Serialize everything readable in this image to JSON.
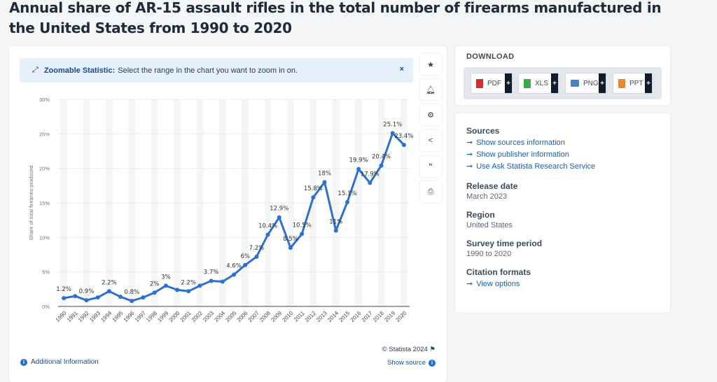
{
  "title": "Annual share of AR-15 assault rifles in the total number of firearms manufactured in the United States from 1990 to 2020",
  "banner": {
    "label": "Zoomable Statistic:",
    "text": "Select the range in the chart you want to zoom in on.",
    "close": "×"
  },
  "footer": {
    "additional": "Additional Information",
    "copyright": "© Statista 2024",
    "show_source": "Show source"
  },
  "download": {
    "title": "DOWNLOAD",
    "buttons": [
      {
        "label": "PDF",
        "color": "#d0312d"
      },
      {
        "label": "XLS",
        "color": "#3aa845"
      },
      {
        "label": "PNG",
        "color": "#4a7fc0"
      },
      {
        "label": "PPT",
        "color": "#e8862a"
      }
    ],
    "plus": "+"
  },
  "info": {
    "sources_title": "Sources",
    "links": [
      "Show sources information",
      "Show publisher information",
      "Use Ask Statista Research Service"
    ],
    "release_title": "Release date",
    "release": "March 2023",
    "region_title": "Region",
    "region": "United States",
    "period_title": "Survey time period",
    "period": "1990 to 2020",
    "citation_title": "Citation formats",
    "citation_link": "View options"
  },
  "chart_data": {
    "type": "line",
    "title": "Annual share of AR-15 assault rifles in the total number of firearms manufactured in the United States from 1990 to 2020",
    "xlabel": "",
    "ylabel": "Share of total firearms produced",
    "ylim": [
      0,
      30
    ],
    "yticks": [
      "0%",
      "5%",
      "10%",
      "15%",
      "20%",
      "25%",
      "30%"
    ],
    "categories": [
      "1990",
      "1991",
      "1992",
      "1993",
      "1994",
      "1995",
      "1996",
      "1997",
      "1998",
      "1999",
      "2000",
      "2001",
      "2002",
      "2003",
      "2004",
      "2005",
      "2006",
      "2007",
      "2008",
      "2009",
      "2010",
      "2011",
      "2012",
      "2013",
      "2014",
      "2015",
      "2016",
      "2017",
      "2018",
      "2019",
      "2020"
    ],
    "values": [
      1.2,
      1.5,
      0.9,
      1.3,
      2.2,
      1.4,
      0.8,
      1.3,
      2,
      3,
      2.4,
      2.2,
      3,
      3.7,
      3.6,
      4.6,
      6,
      7.2,
      10.4,
      12.9,
      8.5,
      10.5,
      15.8,
      18,
      11,
      15.1,
      19.9,
      17.9,
      20.4,
      25.1,
      23.4
    ],
    "labels": [
      "1.2%",
      null,
      "0.9%",
      null,
      "2.2%",
      null,
      "0.8%",
      null,
      "2%",
      "3%",
      null,
      "2.2%",
      null,
      "3.7%",
      null,
      "4.6%",
      "6%",
      "7.2%",
      "10.4%",
      "12.9%",
      "8.5%",
      "10.5%",
      "15.8%",
      "18%",
      "11%",
      "15.1%",
      "19.9%",
      "17.9%",
      "20.4%",
      "25.1%",
      "23.4%"
    ],
    "color": "#2f6fcf",
    "grid": true
  }
}
